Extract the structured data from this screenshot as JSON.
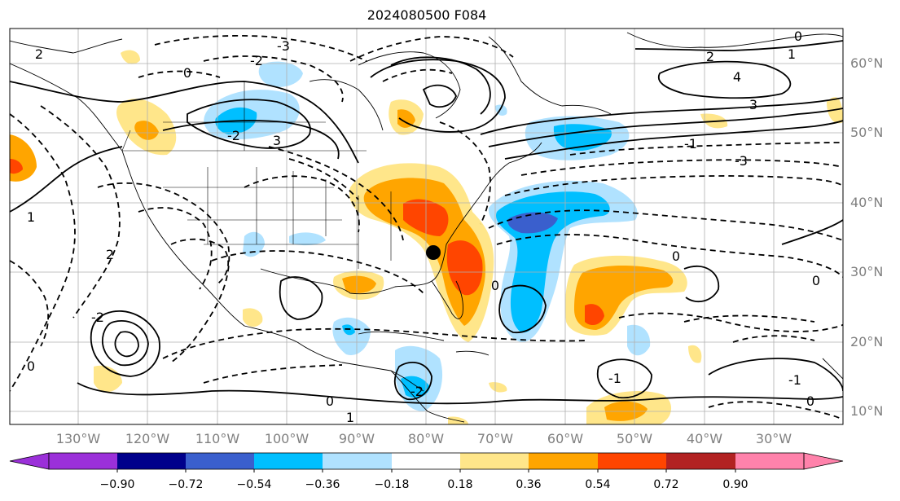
{
  "title": "2024080500 F084",
  "lat_labels": [
    "60°N",
    "50°N",
    "40°N",
    "30°N",
    "20°N",
    "10°N"
  ],
  "lon_labels": [
    "130°W",
    "120°W",
    "110°W",
    "100°W",
    "90°W",
    "80°W",
    "70°W",
    "60°W",
    "50°W",
    "40°W",
    "30°W"
  ],
  "colorbar": {
    "ticks": [
      "−0.90",
      "−0.72",
      "−0.54",
      "−0.36",
      "−0.18",
      "0.18",
      "0.36",
      "0.54",
      "0.72",
      "0.90"
    ],
    "colors": [
      "#9b30d9",
      "#00008b",
      "#3a5fcd",
      "#00bfff",
      "#b0e2ff",
      "#ffffff",
      "#ffe68a",
      "#ffa500",
      "#ff4500",
      "#b22222",
      "#ff82ab"
    ]
  },
  "contour_labels": [
    "2",
    "0",
    "-2",
    "-3",
    "3",
    "4",
    "1",
    "-1",
    "-2",
    "0",
    "2",
    "3",
    "-3",
    "0",
    "-2",
    "0",
    "1",
    "-1",
    "0",
    "-2",
    "0",
    "2",
    "1",
    "0",
    "-1",
    "0"
  ],
  "marker": {
    "label": "",
    "lat": 33,
    "lon": -80
  }
}
